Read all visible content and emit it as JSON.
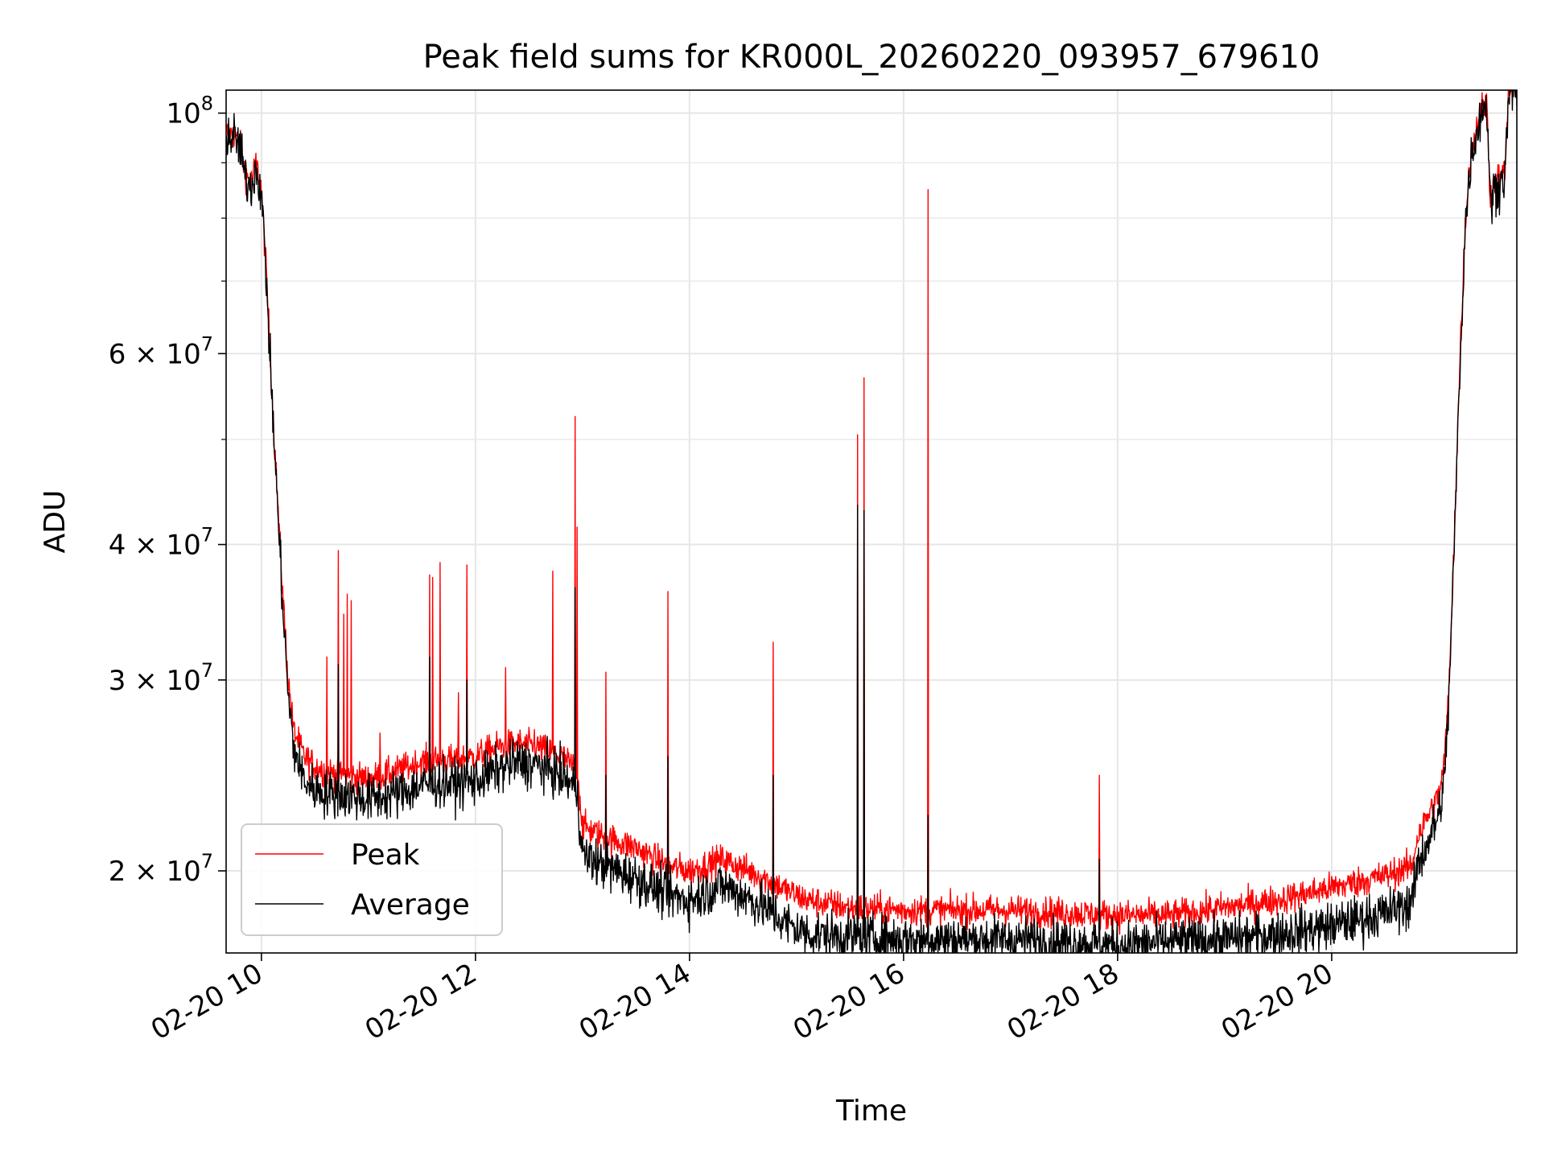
{
  "chart_data": {
    "type": "line",
    "title": "Peak field sums for KR000L_20260220_093957_679610",
    "xlabel": "Time",
    "ylabel": "ADU",
    "yscale": "log",
    "grid": true,
    "legend_position": "lower-left",
    "xlim_hours": [
      9.67,
      21.73
    ],
    "ylim": [
      16800000,
      105000000
    ],
    "x_ticks": [
      {
        "value": 10,
        "label": "02-20 10"
      },
      {
        "value": 12,
        "label": "02-20 12"
      },
      {
        "value": 14,
        "label": "02-20 14"
      },
      {
        "value": 16,
        "label": "02-20 16"
      },
      {
        "value": 18,
        "label": "02-20 18"
      },
      {
        "value": 20,
        "label": "02-20 20"
      }
    ],
    "y_ticks": [
      {
        "value": 100000000,
        "mant": "10",
        "exp": "8"
      },
      {
        "value": 60000000,
        "mant": "6 × 10",
        "exp": "7"
      },
      {
        "value": 40000000,
        "mant": "4 × 10",
        "exp": "7"
      },
      {
        "value": 30000000,
        "mant": "3 × 10",
        "exp": "7"
      },
      {
        "value": 20000000,
        "mant": "2 × 10",
        "exp": "7"
      }
    ],
    "y_minor_ticks": [
      50000000,
      70000000,
      80000000,
      90000000
    ],
    "series": [
      {
        "name": "Peak",
        "color": "#ff0000",
        "noise": 0.016,
        "x": [
          9.67,
          9.75,
          9.8,
          9.85,
          9.9,
          9.95,
          10.0,
          10.05,
          10.1,
          10.15,
          10.2,
          10.25,
          10.3,
          10.4,
          10.5,
          10.6,
          10.8,
          11.0,
          11.2,
          11.4,
          11.5,
          11.6,
          11.8,
          12.0,
          12.2,
          12.4,
          12.6,
          12.8,
          12.95,
          13.0,
          13.2,
          13.5,
          13.8,
          14.0,
          14.3,
          14.5,
          14.7,
          14.9,
          15.1,
          15.5,
          16.0,
          16.5,
          17.0,
          17.5,
          18.0,
          18.5,
          19.0,
          19.5,
          20.0,
          20.5,
          20.75,
          20.8,
          20.9,
          21.0,
          21.05,
          21.1,
          21.15,
          21.2,
          21.25,
          21.3,
          21.4,
          21.45,
          21.48,
          21.55,
          21.62,
          21.65,
          21.7,
          21.73
        ],
        "y": [
          96000000,
          95500000,
          93500000,
          88000000,
          86000000,
          90000000,
          85000000,
          70000000,
          55000000,
          44000000,
          36000000,
          30000000,
          27000000,
          25500000,
          25000000,
          24700000,
          24500000,
          24300000,
          24600000,
          25000000,
          25200000,
          25300000,
          25300000,
          25500000,
          26000000,
          26200000,
          26000000,
          25500000,
          24800000,
          22000000,
          21500000,
          21000000,
          20200000,
          20000000,
          20500000,
          20100000,
          19700000,
          19200000,
          18800000,
          18500000,
          18400000,
          18400000,
          18400000,
          18300000,
          18200000,
          18200000,
          18500000,
          18800000,
          19300000,
          19800000,
          20200000,
          21500000,
          22500000,
          23500000,
          25000000,
          30000000,
          42000000,
          60000000,
          80000000,
          92000000,
          101000000,
          102500000,
          84000000,
          87000000,
          88000000,
          104000000,
          106000000,
          106000000
        ],
        "spikes": [
          {
            "x": 10.61,
            "y": 31500000
          },
          {
            "x": 10.72,
            "y": 39500000
          },
          {
            "x": 10.77,
            "y": 34500000
          },
          {
            "x": 10.8,
            "y": 36000000
          },
          {
            "x": 10.84,
            "y": 35500000
          },
          {
            "x": 11.11,
            "y": 26800000
          },
          {
            "x": 11.57,
            "y": 37500000
          },
          {
            "x": 11.6,
            "y": 37300000
          },
          {
            "x": 11.67,
            "y": 38500000
          },
          {
            "x": 11.84,
            "y": 29200000
          },
          {
            "x": 11.92,
            "y": 38300000
          },
          {
            "x": 12.28,
            "y": 30800000
          },
          {
            "x": 12.55,
            "y": 27000000
          },
          {
            "x": 12.72,
            "y": 37800000
          },
          {
            "x": 12.93,
            "y": 52500000
          },
          {
            "x": 12.95,
            "y": 41500000
          },
          {
            "x": 13.22,
            "y": 30500000
          },
          {
            "x": 13.8,
            "y": 36200000
          },
          {
            "x": 14.78,
            "y": 32500000
          },
          {
            "x": 15.57,
            "y": 50500000
          },
          {
            "x": 15.63,
            "y": 57000000
          },
          {
            "x": 16.23,
            "y": 85000000
          },
          {
            "x": 17.83,
            "y": 24500000
          }
        ]
      },
      {
        "name": "Average",
        "color": "#000000",
        "noise": 0.025,
        "x": [
          9.67,
          9.75,
          9.8,
          9.85,
          9.9,
          9.95,
          10.0,
          10.05,
          10.1,
          10.15,
          10.2,
          10.25,
          10.3,
          10.4,
          10.5,
          10.6,
          10.8,
          11.0,
          11.2,
          11.4,
          11.5,
          11.6,
          11.8,
          12.0,
          12.2,
          12.4,
          12.6,
          12.8,
          12.95,
          13.0,
          13.2,
          13.5,
          13.8,
          14.0,
          14.3,
          14.5,
          14.7,
          14.9,
          15.1,
          15.5,
          16.0,
          16.5,
          17.0,
          17.5,
          18.0,
          18.5,
          19.0,
          19.5,
          20.0,
          20.5,
          20.75,
          20.8,
          20.9,
          21.0,
          21.05,
          21.1,
          21.15,
          21.2,
          21.25,
          21.3,
          21.4,
          21.45,
          21.48,
          21.55,
          21.62,
          21.65,
          21.7,
          21.73
        ],
        "y": [
          95000000,
          95000000,
          93000000,
          87000000,
          85500000,
          89000000,
          84500000,
          69000000,
          54000000,
          43500000,
          35000000,
          29000000,
          26000000,
          24200000,
          23800000,
          23600000,
          23500000,
          23300000,
          23500000,
          23800000,
          24000000,
          24100000,
          24100000,
          24200000,
          24800000,
          25200000,
          25000000,
          24500000,
          23800000,
          20700000,
          20200000,
          19700000,
          19000000,
          18800000,
          19400000,
          19000000,
          18500000,
          17900000,
          17500000,
          17400000,
          17300000,
          17300000,
          17300000,
          17200000,
          17100000,
          17200000,
          17300000,
          17500000,
          17800000,
          18300000,
          18700000,
          20200000,
          21300000,
          22500000,
          24000000,
          29500000,
          41500000,
          59000000,
          79000000,
          91000000,
          100500000,
          102000000,
          83000000,
          86000000,
          87500000,
          103000000,
          105000000,
          105000000
        ],
        "spikes": [
          {
            "x": 10.72,
            "y": 31000000
          },
          {
            "x": 11.57,
            "y": 31500000
          },
          {
            "x": 11.92,
            "y": 30000000
          },
          {
            "x": 12.93,
            "y": 36500000
          },
          {
            "x": 13.22,
            "y": 24500000
          },
          {
            "x": 13.8,
            "y": 25500000
          },
          {
            "x": 14.78,
            "y": 24500000
          },
          {
            "x": 15.57,
            "y": 43500000
          },
          {
            "x": 15.63,
            "y": 43000000
          },
          {
            "x": 16.23,
            "y": 22500000
          },
          {
            "x": 17.83,
            "y": 20500000
          }
        ]
      }
    ]
  }
}
